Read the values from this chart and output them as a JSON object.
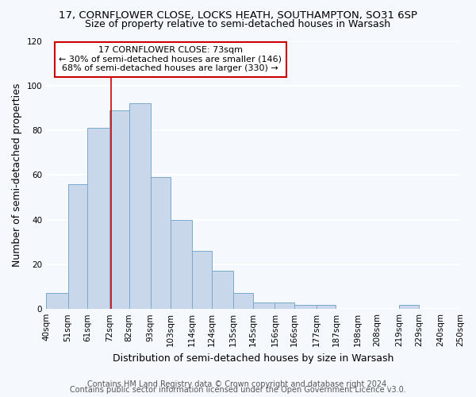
{
  "title": "17, CORNFLOWER CLOSE, LOCKS HEATH, SOUTHAMPTON, SO31 6SP",
  "subtitle": "Size of property relative to semi-detached houses in Warsash",
  "xlabel": "Distribution of semi-detached houses by size in Warsash",
  "ylabel": "Number of semi-detached properties",
  "bin_edges": [
    40,
    51,
    61,
    72,
    82,
    93,
    103,
    114,
    124,
    135,
    145,
    156,
    166,
    177,
    187,
    198,
    208,
    219,
    229,
    240,
    250
  ],
  "bar_heights": [
    7,
    56,
    81,
    89,
    92,
    59,
    40,
    26,
    17,
    7,
    3,
    3,
    2,
    2,
    0,
    0,
    0,
    2,
    0,
    0
  ],
  "bar_color": "#c8d8ea",
  "bar_edge_color": "#7aa8cc",
  "vline_x": 73,
  "vline_color": "#cc0000",
  "annotation_title": "17 CORNFLOWER CLOSE: 73sqm",
  "annotation_line1": "← 30% of semi-detached houses are smaller (146)",
  "annotation_line2": "68% of semi-detached houses are larger (330) →",
  "annotation_box_facecolor": "#ffffff",
  "annotation_box_edgecolor": "#cc0000",
  "ylim": [
    0,
    120
  ],
  "yticks": [
    0,
    20,
    40,
    60,
    80,
    100,
    120
  ],
  "tick_labels": [
    "40sqm",
    "51sqm",
    "61sqm",
    "72sqm",
    "82sqm",
    "93sqm",
    "103sqm",
    "114sqm",
    "124sqm",
    "135sqm",
    "145sqm",
    "156sqm",
    "166sqm",
    "177sqm",
    "187sqm",
    "198sqm",
    "208sqm",
    "219sqm",
    "229sqm",
    "240sqm",
    "250sqm"
  ],
  "footer1": "Contains HM Land Registry data © Crown copyright and database right 2024.",
  "footer2": "Contains public sector information licensed under the Open Government Licence v3.0.",
  "background_color": "#f5f8fc",
  "plot_bg_color": "#f5f8fc",
  "grid_color": "#ffffff",
  "title_fontsize": 9.5,
  "subtitle_fontsize": 9,
  "axis_label_fontsize": 9,
  "tick_fontsize": 7.5,
  "annotation_fontsize": 8,
  "footer_fontsize": 7
}
